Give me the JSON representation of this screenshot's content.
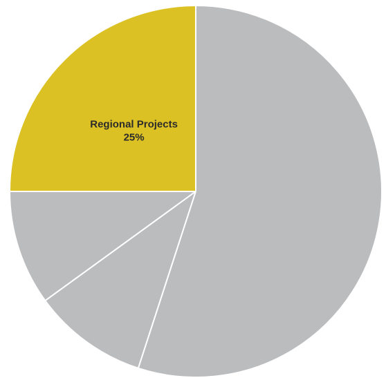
{
  "chart_data": {
    "type": "pie",
    "slices": [
      {
        "label": "Regional Projects",
        "value_label": "25%",
        "value": 25,
        "color": "#dcc124",
        "show_label": true
      },
      {
        "label": "",
        "value_label": "",
        "value": 10,
        "color": "#bbbcbe",
        "show_label": false
      },
      {
        "label": "",
        "value_label": "",
        "value": 10,
        "color": "#bbbcbe",
        "show_label": false
      },
      {
        "label": "",
        "value_label": "",
        "value": 55,
        "color": "#bbbcbe",
        "show_label": false
      }
    ],
    "start_angle_deg": 0,
    "direction": "counterclockwise",
    "start_direction": "up",
    "legend": "none"
  }
}
